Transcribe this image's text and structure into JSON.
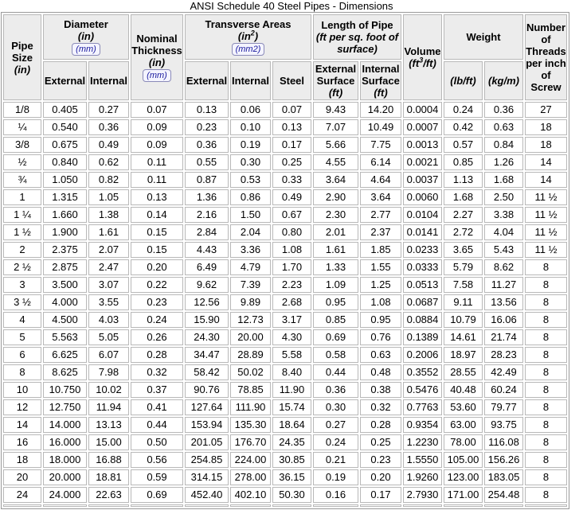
{
  "title": "ANSI Schedule 40 Steel Pipes - Dimensions",
  "headers": {
    "pipe_size": "Pipe Size",
    "pipe_size_unit": "(in)",
    "diameter": "Diameter",
    "diameter_unit": "(in)",
    "diameter_mm_button": "(mm)",
    "diameter_external": "External",
    "diameter_internal": "Internal",
    "nominal_thickness": "Nominal Thickness",
    "nominal_thickness_unit": "(in)",
    "nominal_thickness_mm_button": "(mm)",
    "transverse_areas": "Transverse Areas",
    "transverse_areas_unit_base": "(in",
    "transverse_areas_unit_sup": "2",
    "transverse_areas_unit_close": ")",
    "transverse_areas_mm2_button": "(mm2)",
    "area_external": "External",
    "area_internal": "Internal",
    "area_steel": "Steel",
    "length_of_pipe": "Length of Pipe",
    "length_of_pipe_unit": "(ft per sq. foot of surface)",
    "length_external_surface": "External Surface",
    "length_external_surface_unit": "(ft)",
    "length_internal_surface": "Internal Surface",
    "length_internal_surface_unit": "(ft)",
    "volume": "Volume",
    "volume_unit_base": "(ft",
    "volume_unit_sup": "3",
    "volume_unit_close": "/ft)",
    "weight": "Weight",
    "weight_lbft": "(lb/ft)",
    "weight_kgm": "(kg/m)",
    "threads": "Number of Threads per inch of Screw"
  },
  "rows": [
    [
      "1/8",
      "0.405",
      "0.27",
      "0.07",
      "0.13",
      "0.06",
      "0.07",
      "9.43",
      "14.20",
      "0.0004",
      "0.24",
      "0.36",
      "27"
    ],
    [
      "¼",
      "0.540",
      "0.36",
      "0.09",
      "0.23",
      "0.10",
      "0.13",
      "7.07",
      "10.49",
      "0.0007",
      "0.42",
      "0.63",
      "18"
    ],
    [
      "3/8",
      "0.675",
      "0.49",
      "0.09",
      "0.36",
      "0.19",
      "0.17",
      "5.66",
      "7.75",
      "0.0013",
      "0.57",
      "0.84",
      "18"
    ],
    [
      "½",
      "0.840",
      "0.62",
      "0.11",
      "0.55",
      "0.30",
      "0.25",
      "4.55",
      "6.14",
      "0.0021",
      "0.85",
      "1.26",
      "14"
    ],
    [
      "¾",
      "1.050",
      "0.82",
      "0.11",
      "0.87",
      "0.53",
      "0.33",
      "3.64",
      "4.64",
      "0.0037",
      "1.13",
      "1.68",
      "14"
    ],
    [
      "1",
      "1.315",
      "1.05",
      "0.13",
      "1.36",
      "0.86",
      "0.49",
      "2.90",
      "3.64",
      "0.0060",
      "1.68",
      "2.50",
      "11 ½"
    ],
    [
      "1 ¼",
      "1.660",
      "1.38",
      "0.14",
      "2.16",
      "1.50",
      "0.67",
      "2.30",
      "2.77",
      "0.0104",
      "2.27",
      "3.38",
      "11 ½"
    ],
    [
      "1 ½",
      "1.900",
      "1.61",
      "0.15",
      "2.84",
      "2.04",
      "0.80",
      "2.01",
      "2.37",
      "0.0141",
      "2.72",
      "4.04",
      "11 ½"
    ],
    [
      "2",
      "2.375",
      "2.07",
      "0.15",
      "4.43",
      "3.36",
      "1.08",
      "1.61",
      "1.85",
      "0.0233",
      "3.65",
      "5.43",
      "11 ½"
    ],
    [
      "2 ½",
      "2.875",
      "2.47",
      "0.20",
      "6.49",
      "4.79",
      "1.70",
      "1.33",
      "1.55",
      "0.0333",
      "5.79",
      "8.62",
      "8"
    ],
    [
      "3",
      "3.500",
      "3.07",
      "0.22",
      "9.62",
      "7.39",
      "2.23",
      "1.09",
      "1.25",
      "0.0513",
      "7.58",
      "11.27",
      "8"
    ],
    [
      "3 ½",
      "4.000",
      "3.55",
      "0.23",
      "12.56",
      "9.89",
      "2.68",
      "0.95",
      "1.08",
      "0.0687",
      "9.11",
      "13.56",
      "8"
    ],
    [
      "4",
      "4.500",
      "4.03",
      "0.24",
      "15.90",
      "12.73",
      "3.17",
      "0.85",
      "0.95",
      "0.0884",
      "10.79",
      "16.06",
      "8"
    ],
    [
      "5",
      "5.563",
      "5.05",
      "0.26",
      "24.30",
      "20.00",
      "4.30",
      "0.69",
      "0.76",
      "0.1389",
      "14.61",
      "21.74",
      "8"
    ],
    [
      "6",
      "6.625",
      "6.07",
      "0.28",
      "34.47",
      "28.89",
      "5.58",
      "0.58",
      "0.63",
      "0.2006",
      "18.97",
      "28.23",
      "8"
    ],
    [
      "8",
      "8.625",
      "7.98",
      "0.32",
      "58.42",
      "50.02",
      "8.40",
      "0.44",
      "0.48",
      "0.3552",
      "28.55",
      "42.49",
      "8"
    ],
    [
      "10",
      "10.750",
      "10.02",
      "0.37",
      "90.76",
      "78.85",
      "11.90",
      "0.36",
      "0.38",
      "0.5476",
      "40.48",
      "60.24",
      "8"
    ],
    [
      "12",
      "12.750",
      "11.94",
      "0.41",
      "127.64",
      "111.90",
      "15.74",
      "0.30",
      "0.32",
      "0.7763",
      "53.60",
      "79.77",
      "8"
    ],
    [
      "14",
      "14.000",
      "13.13",
      "0.44",
      "153.94",
      "135.30",
      "18.64",
      "0.27",
      "0.28",
      "0.9354",
      "63.00",
      "93.75",
      "8"
    ],
    [
      "16",
      "16.000",
      "15.00",
      "0.50",
      "201.05",
      "176.70",
      "24.35",
      "0.24",
      "0.25",
      "1.2230",
      "78.00",
      "116.08",
      "8"
    ],
    [
      "18",
      "18.000",
      "16.88",
      "0.56",
      "254.85",
      "224.00",
      "30.85",
      "0.21",
      "0.23",
      "1.5550",
      "105.00",
      "156.26",
      "8"
    ],
    [
      "20",
      "20.000",
      "18.81",
      "0.59",
      "314.15",
      "278.00",
      "36.15",
      "0.19",
      "0.20",
      "1.9260",
      "123.00",
      "183.05",
      "8"
    ],
    [
      "24",
      "24.000",
      "22.63",
      "0.69",
      "452.40",
      "402.10",
      "50.30",
      "0.16",
      "0.17",
      "2.7930",
      "171.00",
      "254.48",
      "8"
    ]
  ]
}
